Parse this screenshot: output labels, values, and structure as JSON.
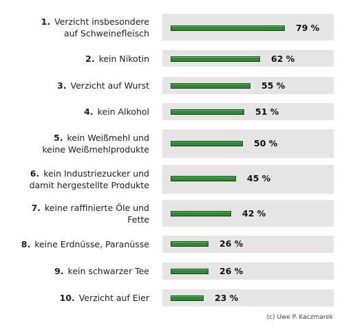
{
  "chart_data": {
    "type": "bar",
    "orientation": "horizontal",
    "categories": [
      {
        "rank": "1.",
        "lines": [
          "Verzicht insbesondere",
          "auf Schweinefleisch"
        ]
      },
      {
        "rank": "2.",
        "lines": [
          "kein Nikotin"
        ]
      },
      {
        "rank": "3.",
        "lines": [
          "Verzicht auf Wurst"
        ]
      },
      {
        "rank": "4.",
        "lines": [
          "kein Alkohol"
        ]
      },
      {
        "rank": "5.",
        "lines": [
          "kein Weißmehl und",
          "keine Weißmehlprodukte"
        ]
      },
      {
        "rank": "6.",
        "lines": [
          "kein Industriezucker und",
          "damit hergestellte Produkte"
        ]
      },
      {
        "rank": "7.",
        "lines": [
          "keine raffinierte Öle und",
          "Fette"
        ]
      },
      {
        "rank": "8.",
        "lines": [
          "keine Erdnüsse, Paranüsse"
        ]
      },
      {
        "rank": "9.",
        "lines": [
          "kein schwarzer Tee"
        ]
      },
      {
        "rank": "10.",
        "lines": [
          "Verzicht auf Eier"
        ]
      }
    ],
    "values": [
      79,
      62,
      55,
      51,
      50,
      45,
      42,
      26,
      26,
      23
    ],
    "value_labels": [
      "79 %",
      "62 %",
      "55 %",
      "51 %",
      "50 %",
      "45 %",
      "42 %",
      "26 %",
      "26 %",
      "23 %"
    ],
    "xlim": [
      0,
      100
    ],
    "title": "",
    "xlabel": "",
    "ylabel": "",
    "grid": false,
    "legend": "none"
  },
  "credit": "(c) Uwe P. Kaczmarek",
  "colors": {
    "bar": "#2f8a36",
    "track": "#e6e4e4"
  }
}
